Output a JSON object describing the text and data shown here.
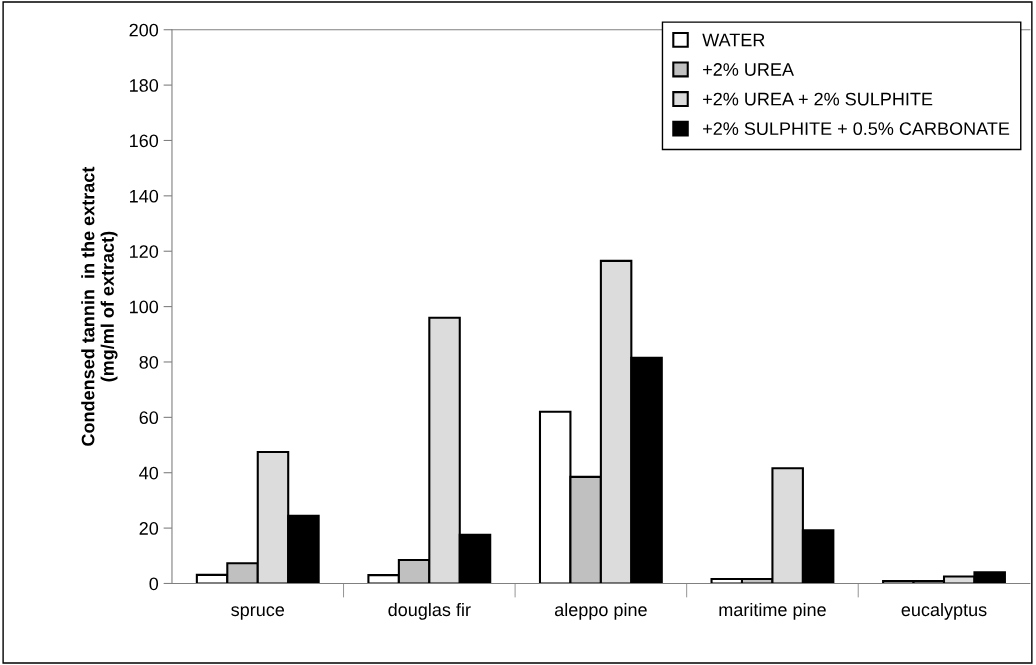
{
  "chart_data": {
    "type": "bar",
    "ylabel": "Condensed tannin  in the extract\n(mg/ml of extract)",
    "categories": [
      "spruce",
      "douglas fir",
      "aleppo pine",
      "maritime pine",
      "eucalyptus"
    ],
    "series": [
      {
        "name": "WATER",
        "color": "#ffffff",
        "values": [
          3.1,
          3.0,
          62,
          1.6,
          0.9
        ]
      },
      {
        "name": "+2% UREA",
        "color": "#c0c0c0",
        "values": [
          7.3,
          8.5,
          38.5,
          1.6,
          0.9
        ]
      },
      {
        "name": "+2% UREA + 2% SULPHITE",
        "color": "#dcdcdc",
        "values": [
          47.5,
          96,
          116.5,
          41.6,
          2.5
        ]
      },
      {
        "name": "+2% SULPHITE + 0.5% CARBONATE",
        "color": "#000000",
        "values": [
          24.4,
          17.6,
          81.5,
          19.2,
          4.0
        ]
      }
    ],
    "ylim": [
      0,
      200
    ],
    "yticks": [
      0,
      20,
      40,
      60,
      80,
      100,
      120,
      140,
      160,
      180,
      200
    ],
    "grid": false,
    "legend": "top right"
  }
}
